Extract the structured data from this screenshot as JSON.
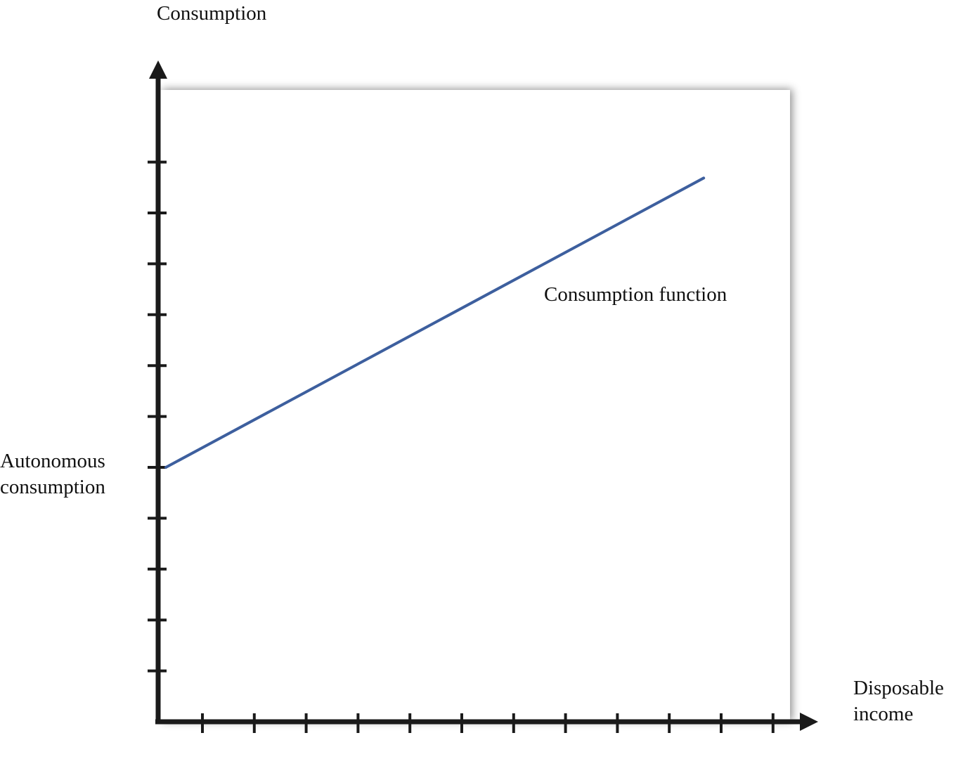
{
  "chart_data": {
    "type": "line",
    "title": "",
    "ylabel": "Consumption",
    "xlabel_lines": [
      "Disposable",
      "income"
    ],
    "y_tick_count": 11,
    "x_tick_count": 12,
    "xlim": [
      0,
      12
    ],
    "ylim": [
      0,
      12
    ],
    "grid": false,
    "series": [
      {
        "name": "Consumption function",
        "x": [
          0,
          10.6
        ],
        "y": [
          5,
          10.7
        ]
      }
    ],
    "annotations": [
      {
        "text_lines": [
          "Autonomous",
          "consumption"
        ],
        "points_to": "y-intercept"
      }
    ],
    "colors": {
      "line": "#3d5f9e",
      "axis": "#1a1a1a",
      "panel": "#ffffff",
      "panel_shadow": "#8c8c8c"
    }
  }
}
